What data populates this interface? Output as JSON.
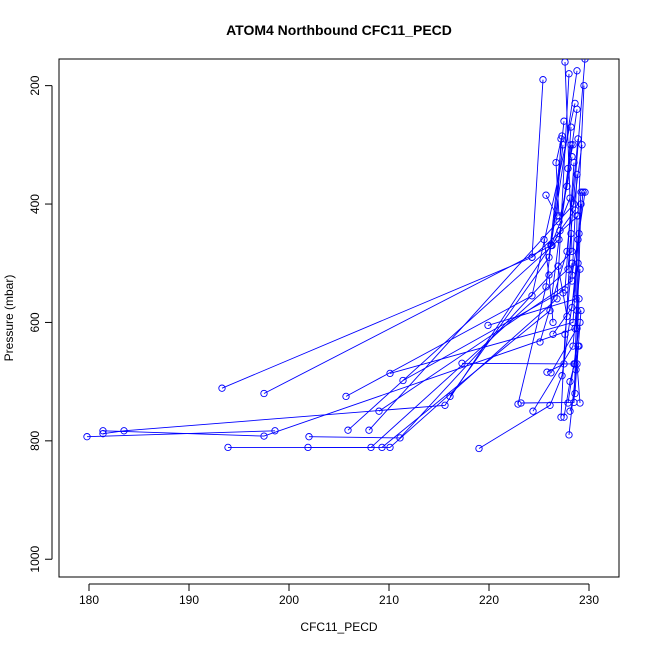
{
  "chart_data": {
    "type": "line",
    "title": "ATOM4 Northbound CFC11_PECD",
    "xlabel": "CFC11_PECD",
    "ylabel": "Pressure (mbar)",
    "xlim": [
      177,
      233
    ],
    "ylim": [
      1030,
      155
    ],
    "y_axis_inverted": true,
    "x_ticks": [
      180,
      190,
      200,
      210,
      220,
      230
    ],
    "y_ticks": [
      200,
      400,
      600,
      800,
      1000
    ],
    "series_color": "#0000ff",
    "marker": "open-circle",
    "grid": false,
    "legend": false,
    "series": [
      {
        "points": [
          [
            179.8,
            793
          ],
          [
            198.6,
            783
          ]
        ]
      },
      {
        "points": [
          [
            181.4,
            783
          ],
          [
            197.5,
            792
          ],
          [
            228.6,
            610
          ]
        ]
      },
      {
        "points": [
          [
            181.4,
            788
          ],
          [
            183.5,
            783
          ],
          [
            215.6,
            740
          ],
          [
            226.2,
            470
          ],
          [
            228.8,
            175
          ]
        ]
      },
      {
        "points": [
          [
            193.9,
            811
          ],
          [
            208.2,
            811
          ],
          [
            227.9,
            510
          ],
          [
            229.6,
            155
          ]
        ]
      },
      {
        "points": [
          [
            201.9,
            811
          ],
          [
            210.1,
            811
          ],
          [
            226.8,
            560
          ],
          [
            228.0,
            180
          ]
        ]
      },
      {
        "points": [
          [
            202.0,
            793
          ],
          [
            211.1,
            795
          ],
          [
            228.3,
            480
          ],
          [
            227.6,
            160
          ]
        ]
      },
      {
        "points": [
          [
            193.3,
            711
          ],
          [
            224.3,
            490
          ],
          [
            228.9,
            420
          ],
          [
            229.5,
            200
          ]
        ]
      },
      {
        "points": [
          [
            197.5,
            720
          ],
          [
            226.2,
            470
          ],
          [
            228.1,
            390
          ]
        ]
      },
      {
        "points": [
          [
            205.7,
            725
          ],
          [
            224.3,
            555
          ],
          [
            228.6,
            230
          ]
        ]
      },
      {
        "points": [
          [
            205.9,
            782
          ],
          [
            227.0,
            460
          ],
          [
            228.8,
            240
          ]
        ]
      },
      {
        "points": [
          [
            208.0,
            782
          ],
          [
            228.5,
            400
          ],
          [
            229.3,
            300
          ]
        ]
      },
      {
        "points": [
          [
            209.0,
            750
          ],
          [
            228.3,
            530
          ],
          [
            228.8,
            350
          ]
        ]
      },
      {
        "points": [
          [
            210.1,
            686
          ],
          [
            228.4,
            600
          ],
          [
            229.2,
            380
          ]
        ]
      },
      {
        "points": [
          [
            211.4,
            698
          ],
          [
            227.6,
            545
          ],
          [
            228.5,
            330
          ]
        ]
      },
      {
        "points": [
          [
            209.3,
            811
          ],
          [
            226.1,
            580
          ],
          [
            228.2,
            300
          ]
        ]
      },
      {
        "points": [
          [
            216.1,
            725
          ],
          [
            226.0,
            490
          ],
          [
            227.5,
            260
          ]
        ]
      },
      {
        "points": [
          [
            217.3,
            669
          ],
          [
            228.6,
            670
          ],
          [
            229.0,
            450
          ]
        ]
      },
      {
        "points": [
          [
            219.0,
            813
          ],
          [
            226.1,
            740
          ],
          [
            227.3,
            690
          ],
          [
            228.9,
            500
          ]
        ]
      },
      {
        "points": [
          [
            219.9,
            605
          ],
          [
            228.7,
            560
          ],
          [
            228.8,
            420
          ]
        ]
      },
      {
        "points": [
          [
            222.9,
            738
          ],
          [
            225.7,
            540
          ],
          [
            227.4,
            300
          ]
        ]
      },
      {
        "points": [
          [
            224.4,
            750
          ],
          [
            228.4,
            640
          ],
          [
            229.1,
            510
          ]
        ]
      },
      {
        "points": [
          [
            225.4,
            190
          ],
          [
            224.3,
            490
          ]
        ]
      },
      {
        "points": [
          [
            225.1,
            633
          ],
          [
            227.8,
            480
          ],
          [
            228.9,
            290
          ]
        ]
      },
      {
        "points": [
          [
            225.8,
            684
          ],
          [
            227.5,
            670
          ],
          [
            228.2,
            450
          ]
        ]
      },
      {
        "points": [
          [
            226.2,
            685
          ],
          [
            228.8,
            610
          ],
          [
            229.2,
            400
          ]
        ]
      },
      {
        "points": [
          [
            226.4,
            620
          ],
          [
            228.3,
            575
          ],
          [
            229.4,
            380
          ]
        ]
      },
      {
        "points": [
          [
            227.2,
            760
          ],
          [
            227.6,
            620
          ],
          [
            228.3,
            500
          ]
        ]
      },
      {
        "points": [
          [
            227.5,
            760
          ],
          [
            228.1,
            700
          ],
          [
            229.0,
            640
          ]
        ]
      },
      {
        "points": [
          [
            227.9,
            736
          ],
          [
            228.5,
            670
          ],
          [
            229.1,
            600
          ]
        ]
      },
      {
        "points": [
          [
            228.0,
            790
          ],
          [
            228.7,
            680
          ],
          [
            229.0,
            560
          ]
        ]
      },
      {
        "points": [
          [
            228.1,
            750
          ],
          [
            228.6,
            720
          ],
          [
            228.9,
            640
          ]
        ]
      },
      {
        "points": [
          [
            229.1,
            736
          ],
          [
            228.8,
            670
          ],
          [
            229.2,
            580
          ]
        ]
      },
      {
        "points": [
          [
            223.2,
            736
          ],
          [
            228.5,
            735
          ],
          [
            228.8,
            580
          ]
        ]
      },
      {
        "points": [
          [
            225.7,
            385
          ],
          [
            226.8,
            420
          ],
          [
            227.2,
            290
          ]
        ]
      },
      {
        "points": [
          [
            227.0,
            430
          ],
          [
            227.8,
            370
          ],
          [
            228.3,
            320
          ]
        ]
      },
      {
        "points": [
          [
            229.6,
            380
          ],
          [
            228.9,
            460
          ],
          [
            228.3,
            520
          ]
        ]
      },
      {
        "points": [
          [
            228.2,
            270
          ],
          [
            227.9,
            340
          ],
          [
            228.4,
            300
          ]
        ]
      },
      {
        "points": [
          [
            227.3,
            285
          ],
          [
            226.7,
            330
          ],
          [
            227.0,
            420
          ]
        ]
      },
      {
        "points": [
          [
            226.3,
            470
          ],
          [
            227.1,
            445
          ],
          [
            228.6,
            410
          ]
        ]
      },
      {
        "points": [
          [
            225.5,
            460
          ],
          [
            226.0,
            520
          ],
          [
            226.4,
            600
          ]
        ]
      },
      {
        "points": [
          [
            226.9,
            505
          ],
          [
            227.4,
            550
          ],
          [
            227.8,
            590
          ]
        ]
      }
    ]
  }
}
